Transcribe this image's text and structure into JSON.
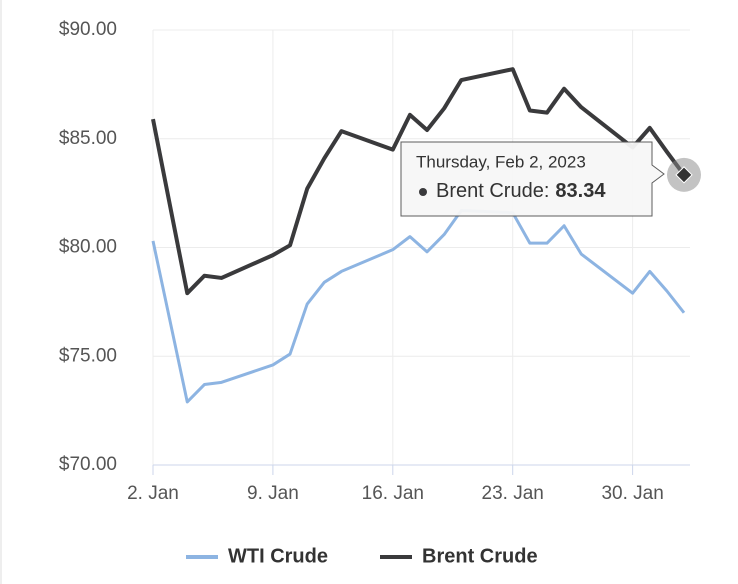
{
  "chart_data": {
    "type": "line",
    "x": [
      "2023-01-02",
      "2023-01-04",
      "2023-01-05",
      "2023-01-06",
      "2023-01-09",
      "2023-01-10",
      "2023-01-11",
      "2023-01-12",
      "2023-01-13",
      "2023-01-16",
      "2023-01-17",
      "2023-01-18",
      "2023-01-19",
      "2023-01-20",
      "2023-01-23",
      "2023-01-24",
      "2023-01-25",
      "2023-01-26",
      "2023-01-27",
      "2023-01-30",
      "2023-01-31",
      "2023-02-01",
      "2023-02-02"
    ],
    "series": [
      {
        "name": "WTI Crude",
        "color": "#8db4e2",
        "values": [
          80.3,
          72.9,
          73.7,
          73.8,
          74.6,
          75.1,
          77.4,
          78.4,
          78.9,
          79.9,
          80.5,
          79.8,
          80.6,
          81.7,
          81.6,
          80.2,
          80.2,
          81.0,
          79.7,
          77.9,
          78.9,
          78.0,
          77.0
        ]
      },
      {
        "name": "Brent Crude",
        "color": "#3a3a3c",
        "values": [
          85.9,
          77.9,
          78.7,
          78.6,
          79.65,
          80.1,
          82.7,
          84.1,
          85.35,
          84.5,
          86.1,
          85.4,
          86.4,
          87.7,
          88.2,
          86.3,
          86.2,
          87.3,
          86.45,
          84.6,
          85.5,
          84.4,
          83.34
        ]
      }
    ],
    "xlim": [
      "2023-01-02",
      "2023-02-02"
    ],
    "xticks": [
      {
        "value": "2023-01-02",
        "label": "2. Jan"
      },
      {
        "value": "2023-01-09",
        "label": "9. Jan"
      },
      {
        "value": "2023-01-16",
        "label": "16. Jan"
      },
      {
        "value": "2023-01-23",
        "label": "23. Jan"
      },
      {
        "value": "2023-01-30",
        "label": "30. Jan"
      }
    ],
    "ylim": [
      70,
      90
    ],
    "yticks": [
      {
        "value": 70,
        "label": "$70.00"
      },
      {
        "value": 75,
        "label": "$75.00"
      },
      {
        "value": 80,
        "label": "$80.00"
      },
      {
        "value": 85,
        "label": "$85.00"
      },
      {
        "value": 90,
        "label": "$90.00"
      }
    ],
    "grid": true,
    "tooltip": {
      "date": "Thursday, Feb 2, 2023",
      "series": "Brent Crude:",
      "value": "83.34"
    }
  }
}
